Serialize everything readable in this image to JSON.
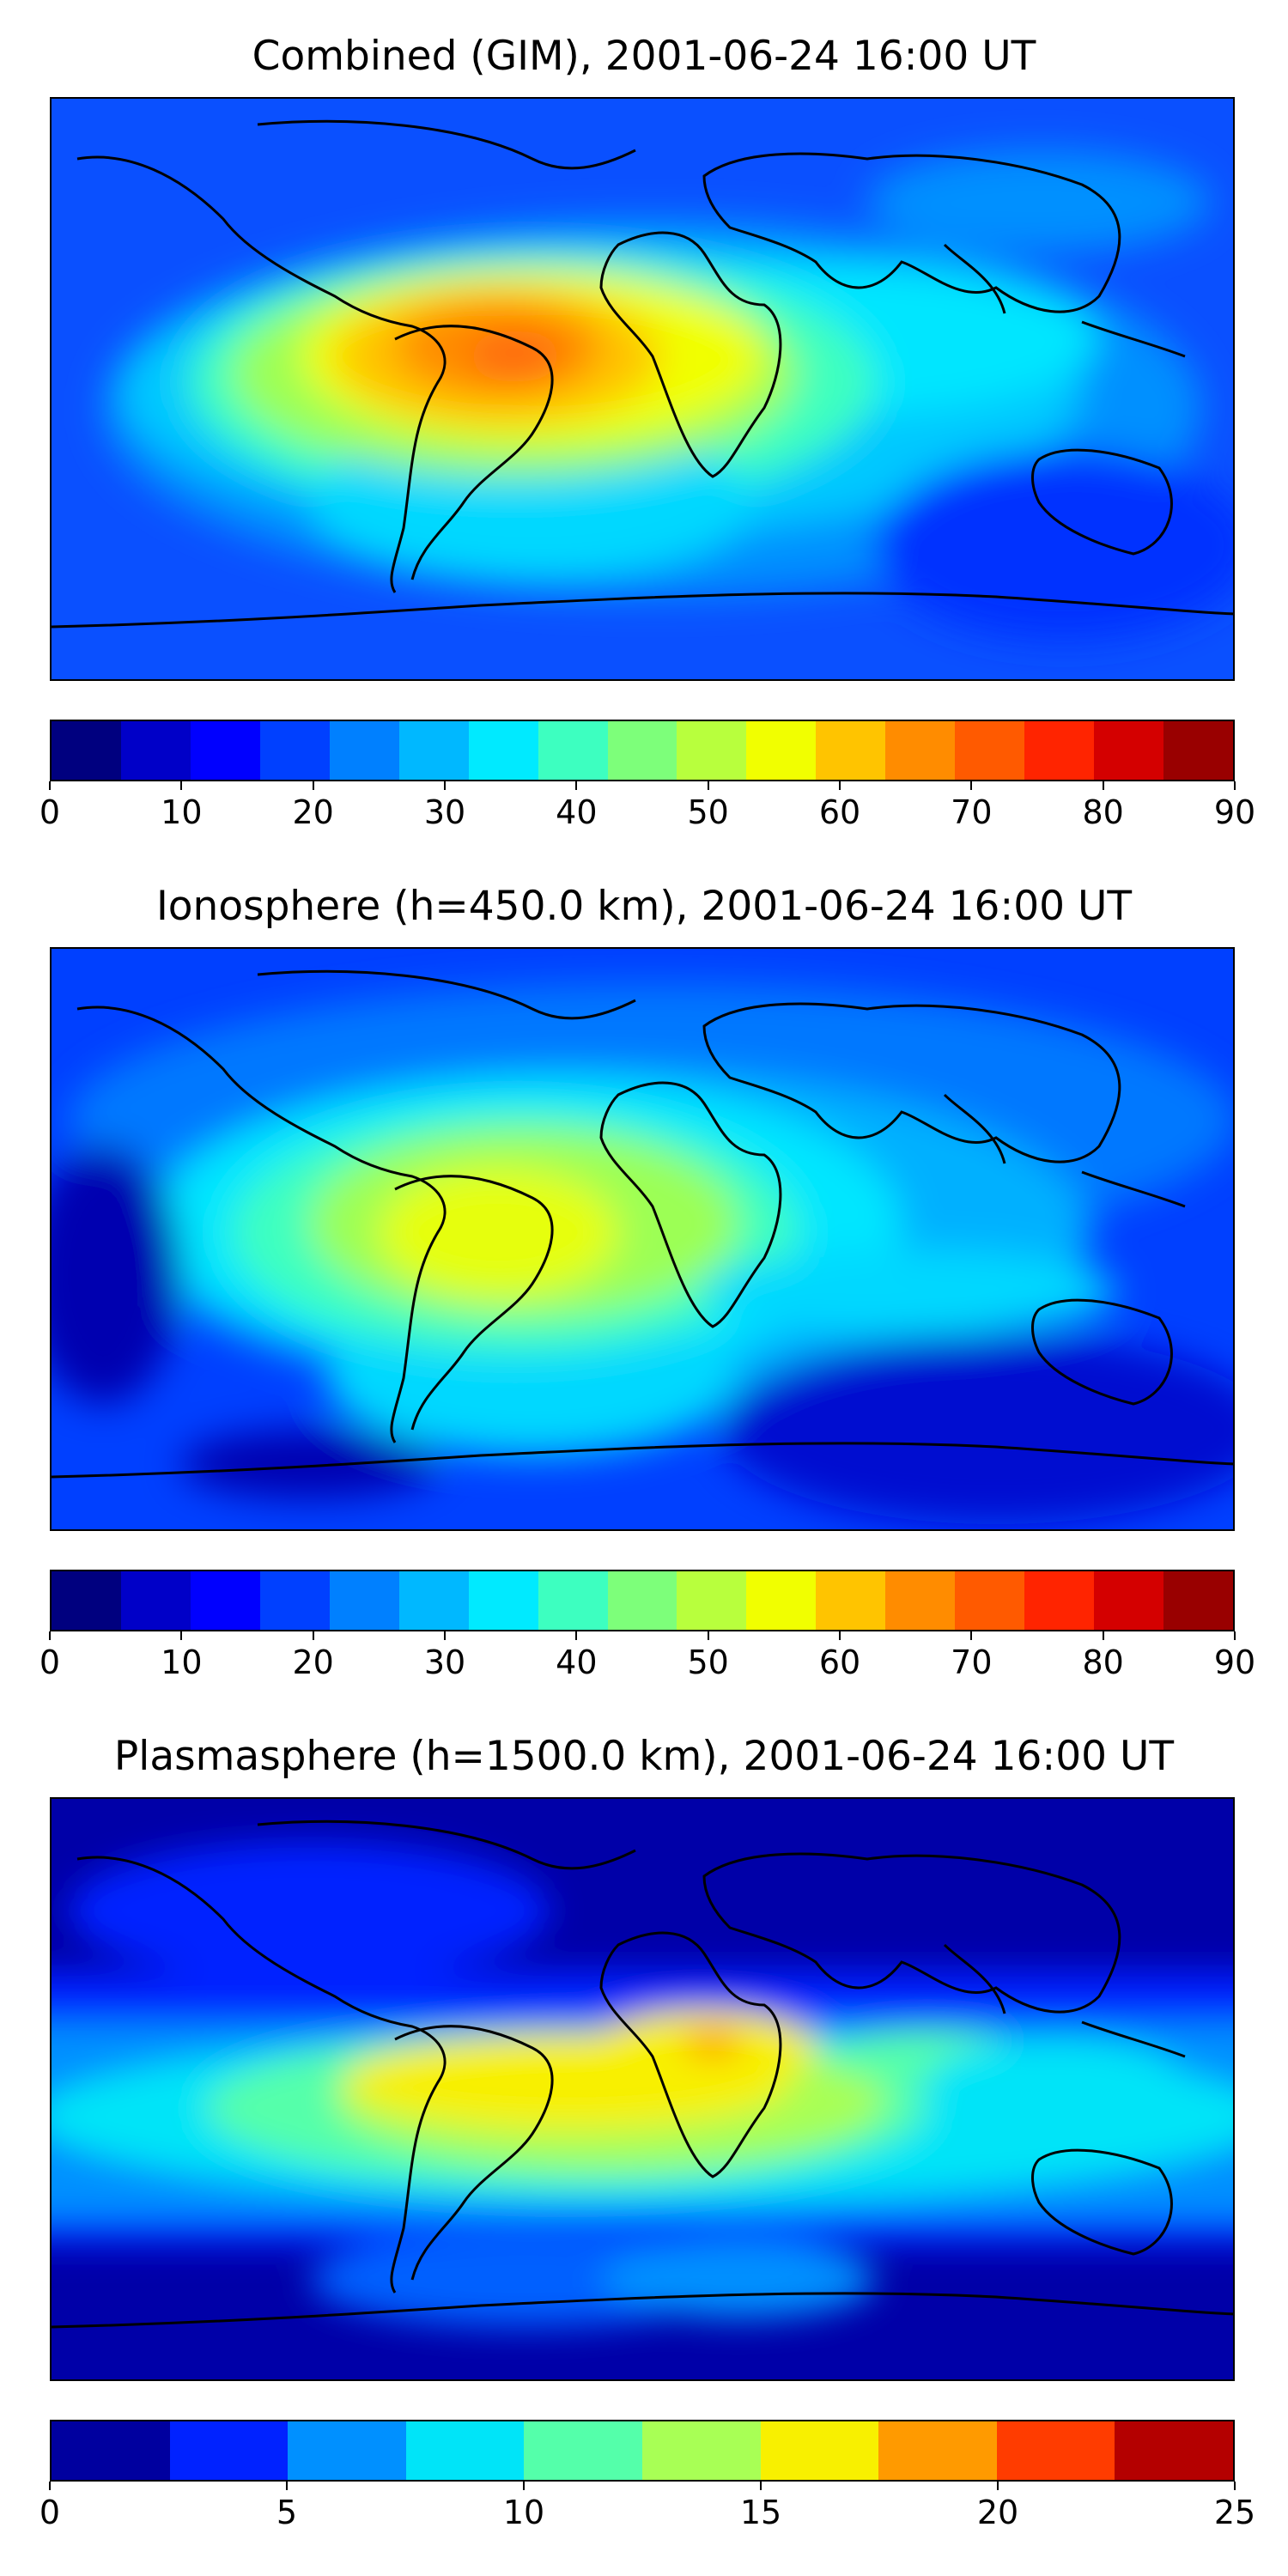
{
  "panels": [
    {
      "title": "Combined (GIM), 2001-06-24 16:00 UT",
      "colorbar": {
        "ticks": [
          "0",
          "10",
          "20",
          "30",
          "40",
          "50",
          "60",
          "70",
          "80",
          "90"
        ],
        "colors": [
          "#00007f",
          "#0000c8",
          "#0000ff",
          "#0040ff",
          "#0080ff",
          "#00b8ff",
          "#00eaff",
          "#3dffc0",
          "#7dff7a",
          "#b8ff3d",
          "#f1ff00",
          "#ffc400",
          "#ff8c00",
          "#ff5a00",
          "#ff2400",
          "#d40000",
          "#990000"
        ]
      }
    },
    {
      "title": "Ionosphere  (h=450.0 km), 2001-06-24 16:00 UT",
      "colorbar": {
        "ticks": [
          "0",
          "10",
          "20",
          "30",
          "40",
          "50",
          "60",
          "70",
          "80",
          "90"
        ],
        "colors": [
          "#00007f",
          "#0000c8",
          "#0000ff",
          "#0040ff",
          "#0080ff",
          "#00b8ff",
          "#00eaff",
          "#3dffc0",
          "#7dff7a",
          "#b8ff3d",
          "#f1ff00",
          "#ffc400",
          "#ff8c00",
          "#ff5a00",
          "#ff2400",
          "#d40000",
          "#990000"
        ]
      }
    },
    {
      "title": "Plasmasphere (h=1500.0 km), 2001-06-24 16:00 UT",
      "colorbar": {
        "ticks": [
          "0",
          "5",
          "10",
          "15",
          "20",
          "25"
        ],
        "colors": [
          "#00009f",
          "#0022ff",
          "#0090ff",
          "#00e4f8",
          "#54ffaa",
          "#a8ff55",
          "#f8f000",
          "#ff9a00",
          "#ff3c00",
          "#b40000"
        ]
      }
    }
  ]
}
